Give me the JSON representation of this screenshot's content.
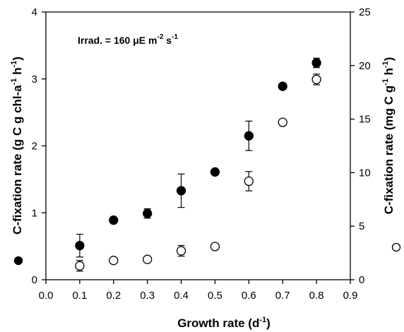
{
  "chart_data": {
    "type": "scatter",
    "title": "",
    "annotation": {
      "prefix": "Irrad. = 160 ",
      "unit_mu": "μ",
      "unit_rest1": "E m",
      "exp1": "-2",
      "unit_rest2": " s",
      "exp2": "-1"
    },
    "xlabel": {
      "text": "Growth rate (d",
      "sup": "-1",
      "close": ")"
    },
    "ylabel_left": {
      "text1": "C-fixation rate (g C g chl-a",
      "sup1": "-1",
      "text2": " h",
      "sup2": "-1",
      "close": ")"
    },
    "ylabel_right": {
      "text1": "C-fixation rate (mg C g",
      "sup1": "-1",
      "text2": " h",
      "sup2": "-1",
      "close": ")"
    },
    "xlim": [
      0,
      0.9
    ],
    "ylim_left": [
      0,
      4
    ],
    "ylim_right": [
      0,
      25
    ],
    "x_ticks": [
      "0.0",
      "0.1",
      "0.2",
      "0.3",
      "0.4",
      "0.5",
      "0.6",
      "0.7",
      "0.8",
      "0.9"
    ],
    "y_left_ticks": [
      "0",
      "1",
      "2",
      "3",
      "4"
    ],
    "y_right_ticks": [
      "0",
      "5",
      "10",
      "15",
      "20",
      "25"
    ],
    "grid": false,
    "series": [
      {
        "marker": "filled-circle",
        "axis": "left",
        "x": [
          0.1,
          0.2,
          0.3,
          0.4,
          0.5,
          0.6,
          0.7,
          0.8
        ],
        "y": [
          0.51,
          0.89,
          0.99,
          1.33,
          1.61,
          2.15,
          2.89,
          3.24
        ],
        "err": [
          0.17,
          0.0,
          0.07,
          0.25,
          0.0,
          0.22,
          0.0,
          0.07
        ]
      },
      {
        "marker": "open-circle",
        "axis": "right",
        "x": [
          0.1,
          0.2,
          0.3,
          0.4,
          0.5,
          0.6,
          0.7,
          0.8
        ],
        "y": [
          1.3,
          1.8,
          1.9,
          2.7,
          3.1,
          9.2,
          14.7,
          18.7
        ],
        "err": [
          0.5,
          0.0,
          0.0,
          0.5,
          0.0,
          0.9,
          0.0,
          0.5
        ]
      }
    ],
    "colors": {
      "axis": "#000000",
      "filled": "#000000",
      "open_fill": "#ffffff"
    }
  }
}
